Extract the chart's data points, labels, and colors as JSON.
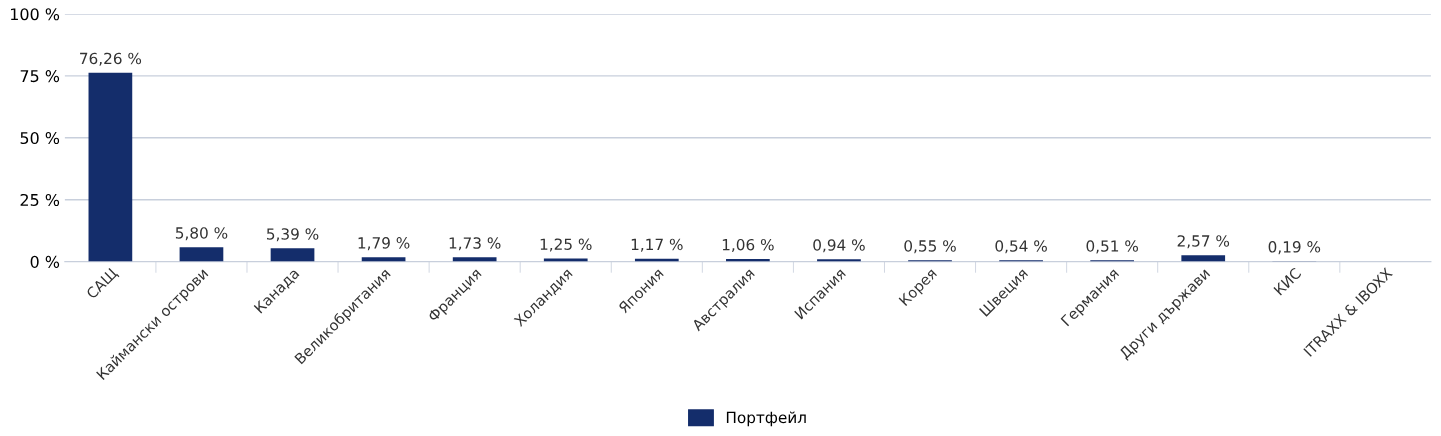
{
  "chart_data": {
    "type": "bar",
    "categories": [
      "САЩ",
      "Каймански острови",
      "Канада",
      "Великобритания",
      "Франция",
      "Холандия",
      "Япония",
      "Австралия",
      "Испания",
      "Корея",
      "Швеция",
      "Германия",
      "Други държави",
      "КИС",
      "ITRAXX & IBOXX"
    ],
    "series": [
      {
        "name": "Портфейл",
        "color": "#142d6b",
        "values": [
          76.26,
          5.8,
          5.39,
          1.79,
          1.73,
          1.25,
          1.17,
          1.06,
          0.94,
          0.55,
          0.54,
          0.51,
          2.57,
          0.19,
          null
        ],
        "value_labels": [
          "76,26 %",
          "5,80 %",
          "5,39 %",
          "1,79 %",
          "1,73 %",
          "1,25 %",
          "1,17 %",
          "1,06 %",
          "0,94 %",
          "0,55 %",
          "0,54 %",
          "0,51 %",
          "2,57 %",
          "0,19 %",
          null
        ]
      }
    ],
    "ylim": [
      0,
      100
    ],
    "yticks": [
      {
        "value": 0,
        "label": "0 %"
      },
      {
        "value": 25,
        "label": "25 %"
      },
      {
        "value": 50,
        "label": "50 %"
      },
      {
        "value": 75,
        "label": "75 %"
      },
      {
        "value": 100,
        "label": "100 %"
      }
    ],
    "grid": "y",
    "legend": "bottom"
  }
}
